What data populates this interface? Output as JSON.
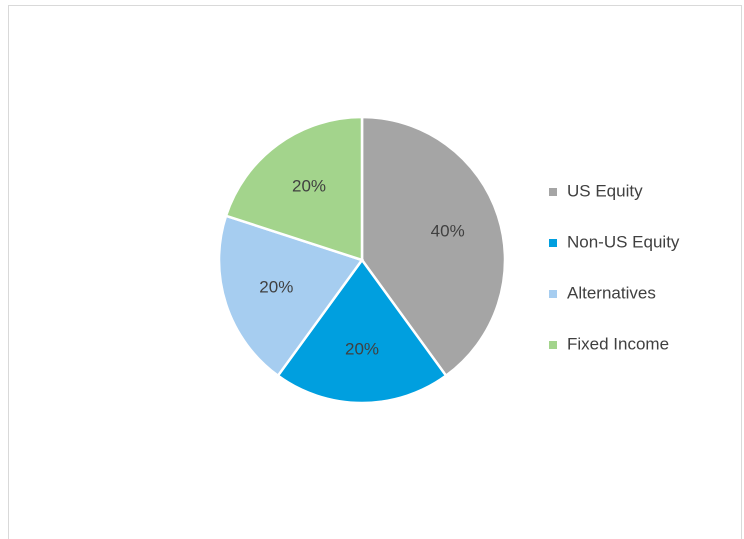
{
  "chart_data": {
    "type": "pie",
    "categories": [
      "US Equity",
      "Non-US Equity",
      "Alternatives",
      "Fixed Income"
    ],
    "values": [
      40,
      20,
      20,
      20
    ],
    "value_labels": [
      "40%",
      "20%",
      "20%",
      "20%"
    ],
    "colors": [
      "#a5a5a5",
      "#009fdf",
      "#a6cdf0",
      "#a3d48c"
    ],
    "legend": "right"
  }
}
